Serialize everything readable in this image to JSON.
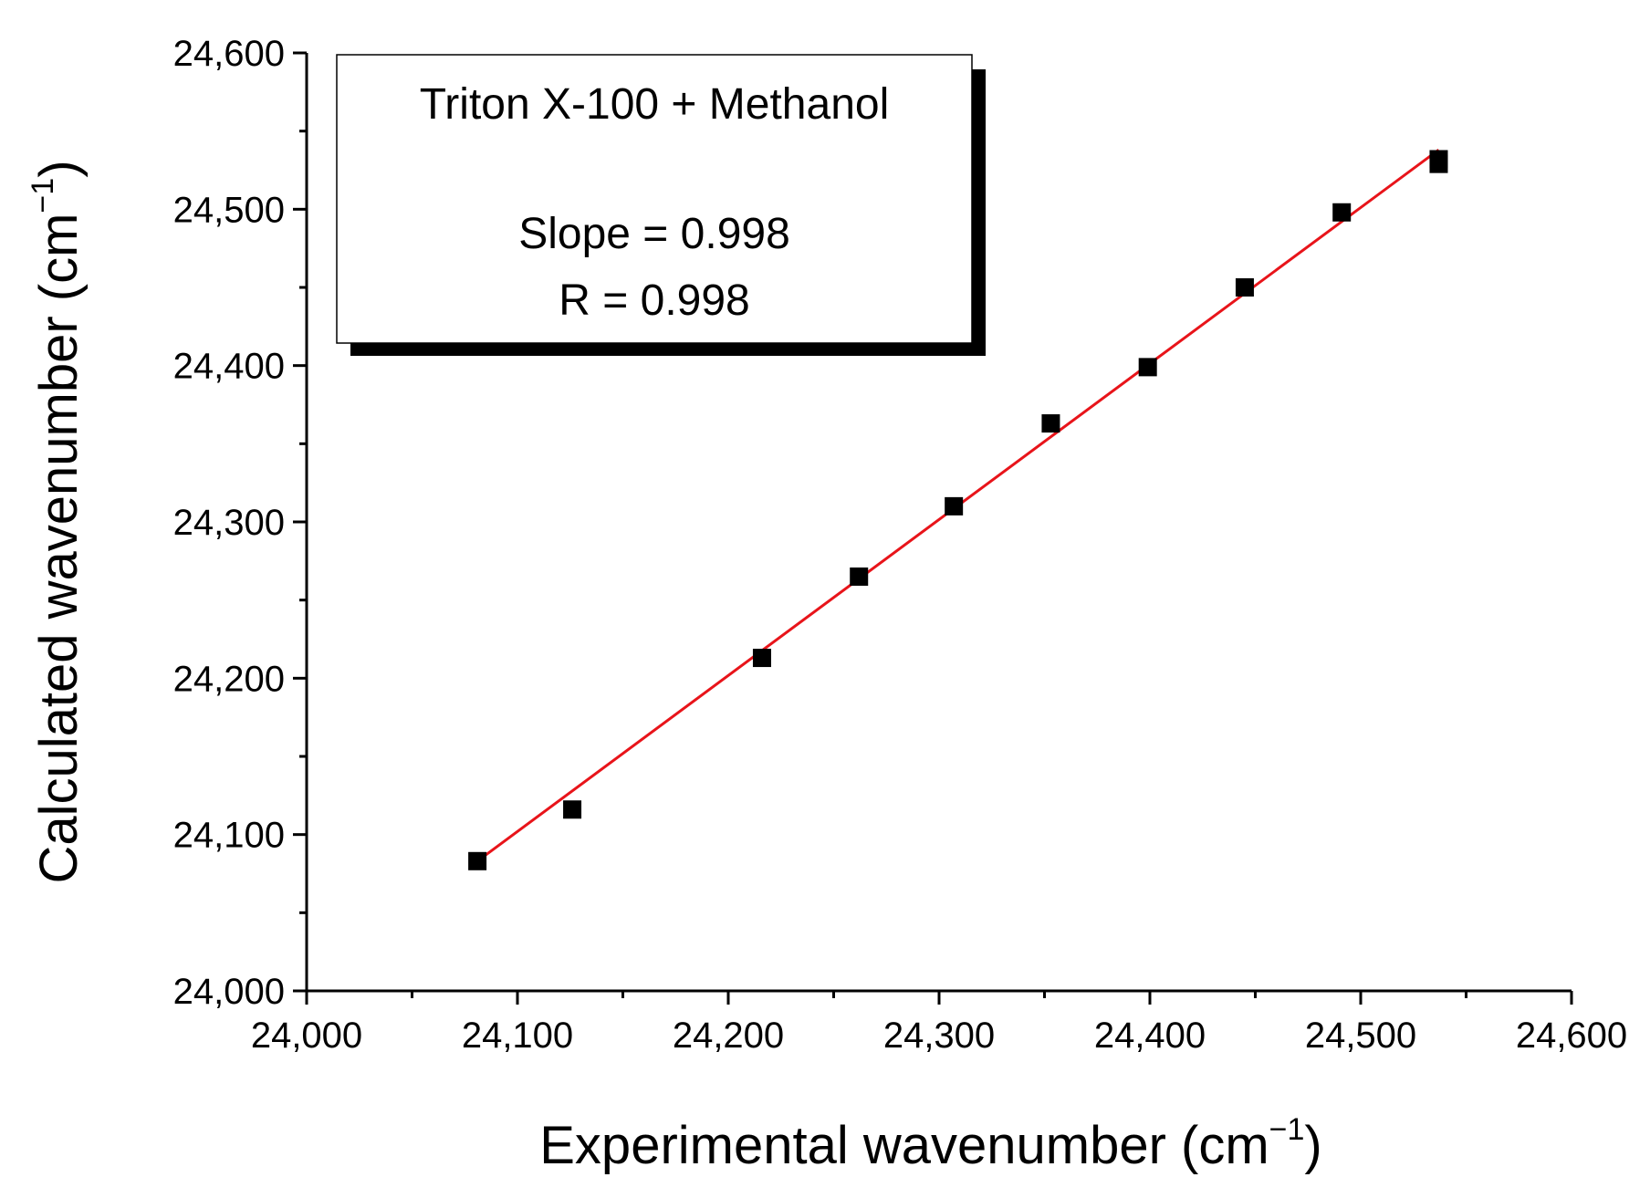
{
  "chart_data": {
    "type": "scatter",
    "title": "",
    "xlabel": "Experimental wavenumber (cm",
    "xlabel_sup": "−1",
    "xlabel_close": ")",
    "ylabel": "Calculated wavenumber (cm",
    "ylabel_sup": "−1",
    "ylabel_close": ")",
    "xlim": [
      24000,
      24600
    ],
    "ylim": [
      24000,
      24600
    ],
    "x_ticks": [
      24000,
      24100,
      24200,
      24300,
      24400,
      24500,
      24600
    ],
    "x_tick_labels": [
      "24,000",
      "24,100",
      "24,200",
      "24,300",
      "24,400",
      "24,500",
      "24,600"
    ],
    "y_ticks": [
      24000,
      24100,
      24200,
      24300,
      24400,
      24500,
      24600
    ],
    "y_tick_labels": [
      "24,000",
      "24,100",
      "24,200",
      "24,300",
      "24,400",
      "24,500",
      "24,600"
    ],
    "grid": false,
    "series": [
      {
        "name": "data",
        "marker": "square",
        "color": "#000000",
        "points": [
          {
            "x": 24081,
            "y": 24083
          },
          {
            "x": 24126,
            "y": 24116
          },
          {
            "x": 24216,
            "y": 24213
          },
          {
            "x": 24262,
            "y": 24265
          },
          {
            "x": 24307,
            "y": 24310
          },
          {
            "x": 24353,
            "y": 24363
          },
          {
            "x": 24399,
            "y": 24399
          },
          {
            "x": 24445,
            "y": 24450
          },
          {
            "x": 24491,
            "y": 24498
          },
          {
            "x": 24537,
            "y": 24529
          },
          {
            "x": 24537,
            "y": 24532
          }
        ]
      }
    ],
    "fit_line": {
      "name": "linear fit",
      "color": "#e8141a",
      "x": [
        24081,
        24537
      ],
      "y": [
        24083,
        24538
      ]
    },
    "annotation": {
      "title": "Triton X-100 + Methanol",
      "slope_text": "Slope = 0.998",
      "r_text": "R = 0.998",
      "placement": "top-left"
    }
  }
}
